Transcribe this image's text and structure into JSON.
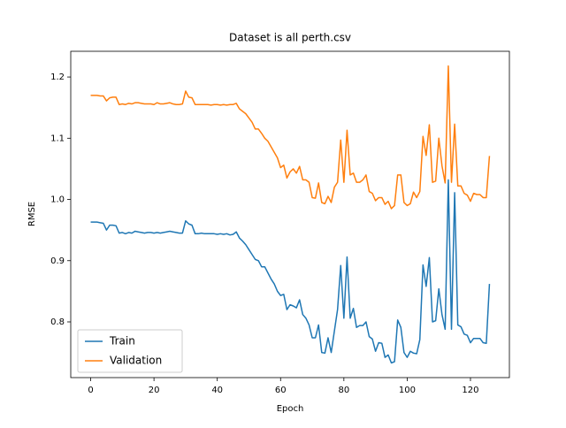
{
  "chart_data": {
    "type": "line",
    "title": "Dataset is all perth.csv",
    "x_label": "Epoch",
    "y_label": "RMSE",
    "x": [
      0,
      1,
      2,
      3,
      4,
      5,
      6,
      7,
      8,
      9,
      10,
      11,
      12,
      13,
      14,
      15,
      16,
      17,
      18,
      19,
      20,
      21,
      22,
      23,
      24,
      25,
      26,
      27,
      28,
      29,
      30,
      31,
      32,
      33,
      34,
      35,
      36,
      37,
      38,
      39,
      40,
      41,
      42,
      43,
      44,
      45,
      46,
      47,
      48,
      49,
      50,
      51,
      52,
      53,
      54,
      55,
      56,
      57,
      58,
      59,
      60,
      61,
      62,
      63,
      64,
      65,
      66,
      67,
      68,
      69,
      70,
      71,
      72,
      73,
      74,
      75,
      76,
      77,
      78,
      79,
      80,
      81,
      82,
      83,
      84,
      85,
      86,
      87,
      88,
      89,
      90,
      91,
      92,
      93,
      94,
      95,
      96,
      97,
      98,
      99,
      100,
      101,
      102,
      103,
      104,
      105,
      106,
      107,
      108,
      109,
      110,
      111,
      112,
      113,
      114,
      115,
      116,
      117,
      118,
      119,
      120,
      121,
      122,
      123,
      124,
      125,
      126
    ],
    "series": [
      {
        "name": "Train",
        "color": "#1f77b4",
        "values": [
          0.963,
          0.963,
          0.963,
          0.962,
          0.961,
          0.95,
          0.958,
          0.958,
          0.957,
          0.945,
          0.946,
          0.944,
          0.946,
          0.945,
          0.948,
          0.947,
          0.946,
          0.945,
          0.946,
          0.946,
          0.945,
          0.946,
          0.945,
          0.946,
          0.947,
          0.948,
          0.947,
          0.946,
          0.945,
          0.945,
          0.965,
          0.96,
          0.958,
          0.944,
          0.944,
          0.945,
          0.944,
          0.944,
          0.944,
          0.944,
          0.943,
          0.944,
          0.943,
          0.944,
          0.942,
          0.943,
          0.947,
          0.937,
          0.932,
          0.926,
          0.918,
          0.91,
          0.902,
          0.9,
          0.89,
          0.89,
          0.88,
          0.87,
          0.862,
          0.85,
          0.843,
          0.845,
          0.82,
          0.828,
          0.826,
          0.823,
          0.836,
          0.812,
          0.806,
          0.795,
          0.774,
          0.774,
          0.795,
          0.75,
          0.749,
          0.774,
          0.75,
          0.785,
          0.82,
          0.892,
          0.806,
          0.906,
          0.806,
          0.822,
          0.791,
          0.794,
          0.794,
          0.8,
          0.776,
          0.772,
          0.752,
          0.766,
          0.765,
          0.742,
          0.746,
          0.733,
          0.735,
          0.803,
          0.791,
          0.75,
          0.742,
          0.752,
          0.749,
          0.748,
          0.771,
          0.893,
          0.858,
          0.905,
          0.8,
          0.802,
          0.854,
          0.812,
          0.788,
          1.032,
          0.788,
          1.011,
          0.795,
          0.792,
          0.78,
          0.778,
          0.766,
          0.773,
          0.773,
          0.773,
          0.766,
          0.765,
          0.862
        ]
      },
      {
        "name": "Validation",
        "color": "#ff7f0e",
        "values": [
          1.17,
          1.17,
          1.17,
          1.169,
          1.169,
          1.161,
          1.166,
          1.167,
          1.167,
          1.155,
          1.156,
          1.155,
          1.157,
          1.156,
          1.158,
          1.158,
          1.157,
          1.156,
          1.156,
          1.156,
          1.155,
          1.158,
          1.156,
          1.156,
          1.157,
          1.158,
          1.156,
          1.155,
          1.155,
          1.156,
          1.177,
          1.167,
          1.166,
          1.155,
          1.155,
          1.155,
          1.155,
          1.155,
          1.154,
          1.155,
          1.155,
          1.154,
          1.155,
          1.154,
          1.155,
          1.155,
          1.157,
          1.148,
          1.144,
          1.14,
          1.133,
          1.126,
          1.115,
          1.115,
          1.108,
          1.1,
          1.095,
          1.086,
          1.077,
          1.068,
          1.052,
          1.056,
          1.035,
          1.045,
          1.05,
          1.043,
          1.054,
          1.032,
          1.032,
          1.028,
          1.003,
          1.002,
          1.027,
          0.995,
          0.993,
          1.005,
          0.995,
          1.02,
          1.028,
          1.097,
          1.028,
          1.113,
          1.04,
          1.043,
          1.028,
          1.028,
          1.032,
          1.04,
          1.013,
          1.01,
          0.998,
          1.003,
          1.003,
          0.992,
          0.997,
          0.985,
          0.99,
          1.04,
          1.04,
          0.995,
          0.99,
          0.993,
          1.012,
          1.003,
          1.013,
          1.103,
          1.072,
          1.122,
          1.028,
          1.03,
          1.1,
          1.055,
          1.027,
          1.218,
          1.028,
          1.123,
          1.022,
          1.022,
          1.01,
          1.007,
          0.997,
          1.01,
          1.008,
          1.008,
          1.003,
          1.003,
          1.071
        ]
      }
    ],
    "xlim": [
      -6.3,
      132.3
    ],
    "ylim": [
      0.709,
      1.242
    ],
    "xticks": [
      0,
      20,
      40,
      60,
      80,
      100,
      120
    ],
    "yticks": [
      0.8,
      0.9,
      {
        "value": 1,
        "label": "1.0"
      },
      1.1,
      1.2
    ],
    "legend": "lower left"
  }
}
